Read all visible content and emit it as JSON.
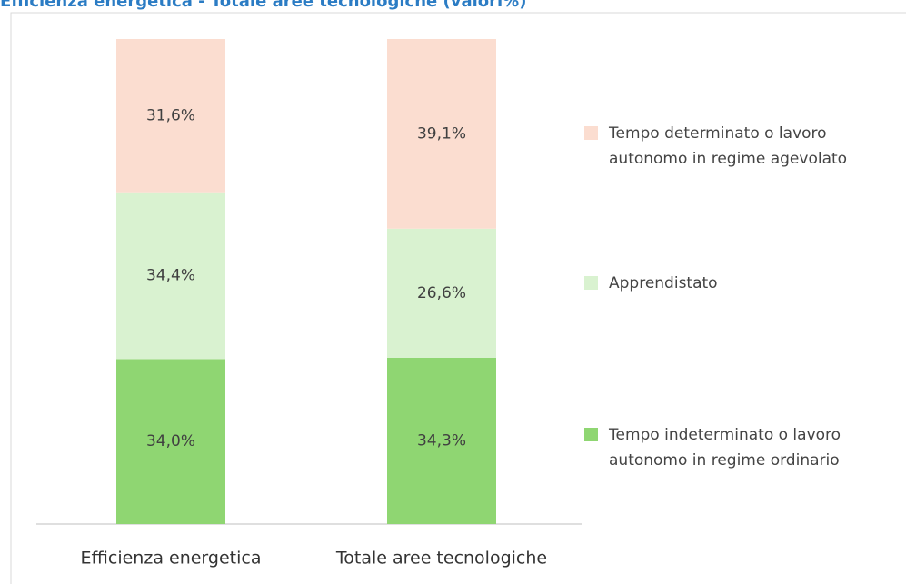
{
  "chart_data": {
    "type": "stacked_bar",
    "title": "Efficienza energetica - Totale aree tecnologiche (valori%)",
    "categories": [
      "Efficienza energetica",
      "Totale aree tecnologiche"
    ],
    "series": [
      {
        "name": "Tempo indeterminato o lavoro autonomo in regime ordinario",
        "color": "#8fd672",
        "values": [
          34.0,
          34.3
        ],
        "value_labels": [
          "34,0%",
          "34,3%"
        ]
      },
      {
        "name": "Apprendistato",
        "color": "#d9f2d0",
        "values": [
          34.4,
          26.6
        ],
        "value_labels": [
          "34,4%",
          "26,6%"
        ]
      },
      {
        "name": "Tempo determinato o lavoro autonomo in regime agevolato",
        "color": "#fbddd0",
        "values": [
          31.6,
          39.1
        ],
        "value_labels": [
          "31,6%",
          "39,1%"
        ]
      }
    ],
    "ylim": [
      0,
      100
    ],
    "legend": "right"
  }
}
